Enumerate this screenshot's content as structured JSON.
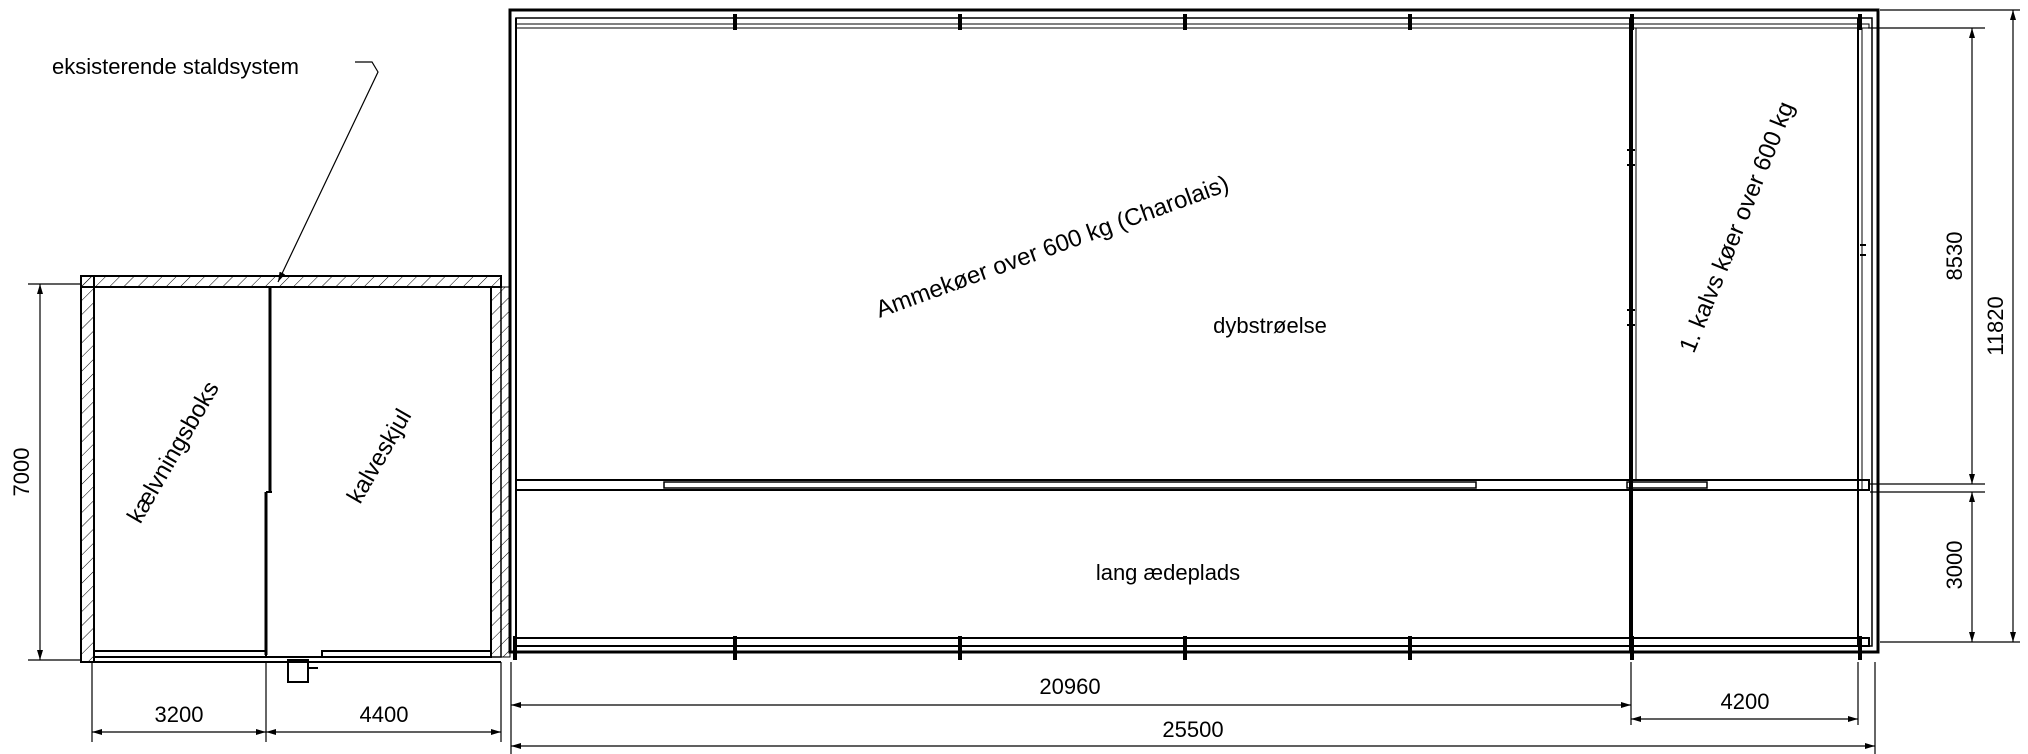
{
  "labels": {
    "existing": "eksisterende staldsystem",
    "box_calving": "kælvningsboks",
    "box_calf": "kalveskjul",
    "main_area": "Ammekøer over 600 kg (Charolais)",
    "bedding": "dybstrøelse",
    "right_area": "1. kalvs køer over 600 kg",
    "feeding": "lang ædeplads"
  },
  "dimensions": {
    "d3200": "3200",
    "d4400": "4400",
    "d20960": "20960",
    "d4200": "4200",
    "d25500": "25500",
    "d7000": "7000",
    "d8530": "8530",
    "d3000": "3000",
    "d11820": "11820"
  },
  "colors": {
    "line": "#000000",
    "background": "#ffffff"
  }
}
